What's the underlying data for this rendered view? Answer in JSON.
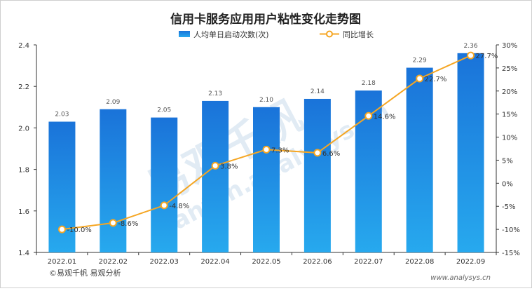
{
  "chart_data": {
    "type": "bar",
    "title": "信用卡服务应用用户粘性变化走势图",
    "categories": [
      "2022.01",
      "2022.02",
      "2022.03",
      "2022.04",
      "2022.05",
      "2022.06",
      "2022.07",
      "2022.08",
      "2022.09"
    ],
    "series": [
      {
        "name": "人均单日启动次数(次)",
        "type": "bar",
        "axis": "left",
        "values": [
          2.03,
          2.09,
          2.05,
          2.13,
          2.1,
          2.14,
          2.18,
          2.29,
          2.36
        ],
        "labels": [
          "2.03",
          "2.09",
          "2.05",
          "2.13",
          "2.10",
          "2.14",
          "2.18",
          "2.29",
          "2.36"
        ]
      },
      {
        "name": "同比增长",
        "type": "line",
        "axis": "right",
        "values": [
          -10.0,
          -8.6,
          -4.8,
          3.8,
          7.3,
          6.6,
          14.6,
          22.7,
          27.7
        ],
        "labels": [
          "-10.0%",
          "-8.6%",
          "-4.8%",
          "3.8%",
          "7.3%",
          "6.6%",
          "14.6%",
          "22.7%",
          "27.7%"
        ]
      }
    ],
    "y_left": {
      "min": 1.4,
      "max": 2.4,
      "ticks": [
        "1.4",
        "1.6",
        "1.8",
        "2.0",
        "2.2",
        "2.4"
      ]
    },
    "y_right": {
      "min": -15,
      "max": 30,
      "ticks": [
        "-15%",
        "-10%",
        "-5%",
        "0%",
        "5%",
        "10%",
        "15%",
        "20%",
        "25%",
        "30%"
      ]
    },
    "grid": false,
    "legend": "top-center",
    "colors": {
      "bar_top": "#1a73d9",
      "bar_bottom": "#27a9ee",
      "line": "#f5a623",
      "marker_fill": "#ffffff",
      "text": "#333333",
      "watermark": "#c9dcec"
    }
  },
  "source": "©易观千帆 易观分析",
  "site": "www.analysys.cn",
  "watermark": {
    "text": "易观千帆",
    "sub": "qianfan.analysys.cn"
  }
}
